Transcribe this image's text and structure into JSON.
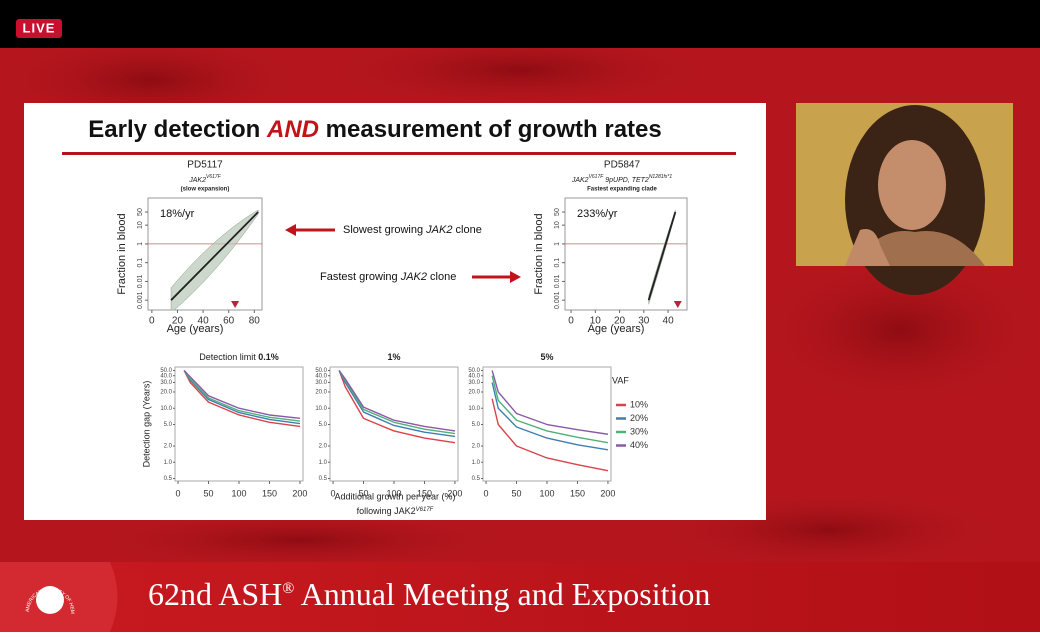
{
  "live_badge": "LIVE",
  "slide": {
    "title": [
      "Early detection ",
      "AND",
      " measurement of growth rates"
    ],
    "growth_charts": [
      {
        "sample": "PD5117",
        "genotype": [
          [
            "JAK2",
            "V617F"
          ]
        ],
        "note": "(slow expansion)",
        "rate": "18%/yr",
        "ylabel": "Fraction in blood",
        "xlabel": "Age (years)",
        "xlim": [
          -3,
          86
        ],
        "xticks": [
          0,
          20,
          40,
          60,
          80
        ],
        "ylim": [
          0.0003,
          280
        ],
        "yticks": [
          0.001,
          0.01,
          0.1,
          1,
          10,
          50
        ],
        "log_y": true,
        "fit_x": [
          15,
          83
        ],
        "fit_y": [
          0.001,
          50
        ],
        "reference": 1,
        "marker_x": 65
      },
      {
        "sample": "PD5847",
        "genotype": [
          [
            "JAK2",
            "V617F"
          ],
          [
            " 9pUPD, TET2",
            "N1281fs*1"
          ]
        ],
        "note": "Fastest expanding clade",
        "rate": "233%/yr",
        "ylabel": "Fraction in blood",
        "xlabel": "Age (years)",
        "xlim": [
          -2.5,
          47.8
        ],
        "xticks": [
          0,
          10,
          20,
          30,
          40
        ],
        "ylim": [
          0.0003,
          280
        ],
        "yticks": [
          0.001,
          0.01,
          0.1,
          1,
          10,
          50
        ],
        "log_y": true,
        "fit_x": [
          32,
          43
        ],
        "fit_y": [
          0.001,
          50
        ],
        "reference": 1,
        "marker_x": 44
      }
    ],
    "arrows": [
      [
        "Slowest growing ",
        "JAK2",
        " clone"
      ],
      [
        "Fastest growing ",
        "JAK2",
        " clone"
      ]
    ],
    "gap_panels": {
      "ylabel": "Detection gap  (Years)",
      "xlabel": "Additional growth per year (%)",
      "xlabel2": [
        "following JAK2",
        "V617F"
      ],
      "xlim": [
        -5,
        205
      ],
      "xticks": [
        0,
        50,
        100,
        150,
        200
      ],
      "ylim": [
        0.45,
        58
      ],
      "log_y": true,
      "yticks": [
        {
          "value": 0.5,
          "label": "0.5"
        },
        {
          "value": 1,
          "label": "1.0"
        },
        {
          "value": 2,
          "label": "2.0"
        },
        {
          "value": 5,
          "label": "5.0"
        },
        {
          "value": 10,
          "label": "10.0"
        },
        {
          "value": 20,
          "label": "20.0"
        },
        {
          "value": 30,
          "label": "30.0"
        },
        {
          "value": 40,
          "label": "40.0"
        },
        {
          "value": 50,
          "label": "50.0"
        }
      ],
      "legend_title": "VAF",
      "series": [
        {
          "name": "10%",
          "color": "#d9434b"
        },
        {
          "name": "20%",
          "color": "#3f7fb0"
        },
        {
          "name": "30%",
          "color": "#4fb07a"
        },
        {
          "name": "40%",
          "color": "#8a5aa6"
        }
      ],
      "x": [
        10,
        20,
        50,
        100,
        150,
        200
      ],
      "panels": [
        {
          "prefix": "Detection limit ",
          "limit": "0.1%",
          "values": [
            [
              50,
              30,
              13,
              7.5,
              5.5,
              4.6
            ],
            [
              50,
              33,
              14.5,
              8.3,
              6.2,
              5.2
            ],
            [
              50,
              35,
              15.5,
              9,
              6.8,
              5.8
            ],
            [
              50,
              38,
              17,
              10,
              7.5,
              6.5
            ]
          ]
        },
        {
          "limit": "1%",
          "values": [
            [
              50,
              25,
              6.5,
              3.8,
              2.8,
              2.3
            ],
            [
              50,
              30,
              8.5,
              4.8,
              3.6,
              3
            ],
            [
              50,
              33,
              9.5,
              5.5,
              4.1,
              3.4
            ],
            [
              50,
              35,
              10.5,
              6,
              4.6,
              3.8
            ]
          ]
        },
        {
          "limit": "5%",
          "values": [
            [
              15,
              5,
              2,
              1.2,
              0.9,
              0.7
            ],
            [
              30,
              10,
              4.5,
              2.8,
              2.1,
              1.7
            ],
            [
              40,
              14,
              6,
              3.8,
              2.9,
              2.3
            ],
            [
              50,
              20,
              8,
              5,
              4,
              3.3
            ]
          ]
        }
      ]
    }
  },
  "banner": {
    "text": "62nd ASH",
    "reg": "®",
    "rest": " Annual Meeting and Exposition",
    "logo": "AMERICAN SOCIETY OF HEMATOLOGY"
  }
}
